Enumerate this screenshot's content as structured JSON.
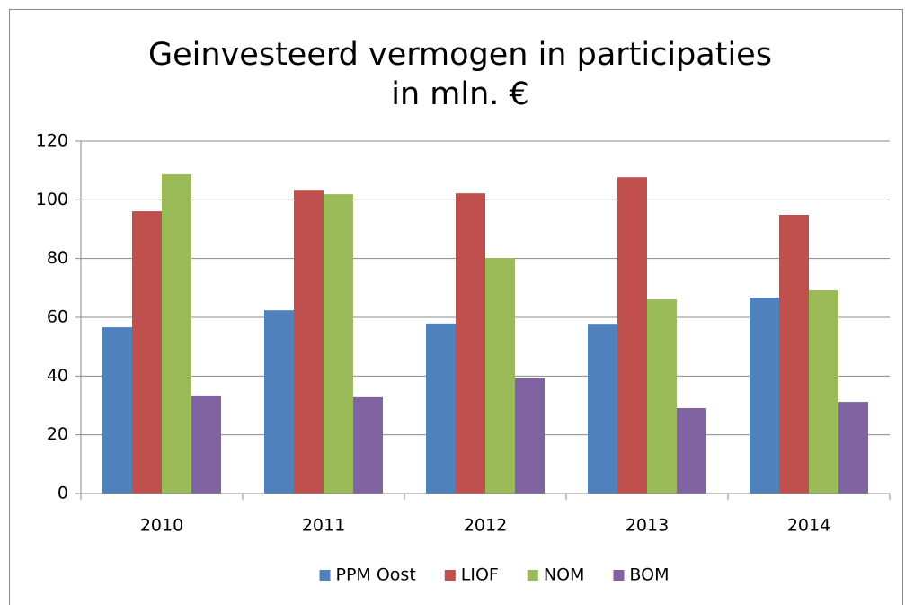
{
  "chart_data": {
    "type": "bar",
    "title": [
      "Geinvesteerd vermogen in participaties",
      "in mln. €"
    ],
    "categories": [
      "2010",
      "2011",
      "2012",
      "2013",
      "2014"
    ],
    "series": [
      {
        "name": "PPM Oost",
        "color": "#4f81bd",
        "values": [
          56.6,
          62.4,
          57.9,
          57.8,
          66.7
        ]
      },
      {
        "name": "LIOF",
        "color": "#c0504d",
        "values": [
          96.1,
          103.4,
          102.2,
          107.7,
          94.9
        ]
      },
      {
        "name": "NOM",
        "color": "#9bbb59",
        "values": [
          108.7,
          101.9,
          80.2,
          66.1,
          69.2
        ]
      },
      {
        "name": "BOM",
        "color": "#8064a2",
        "values": [
          33.4,
          32.8,
          39.2,
          29.1,
          31.2
        ]
      }
    ],
    "ylim": [
      0,
      120
    ],
    "yticks": [
      0,
      20,
      40,
      60,
      80,
      100,
      120
    ],
    "grid": true,
    "legend": "bottom"
  }
}
